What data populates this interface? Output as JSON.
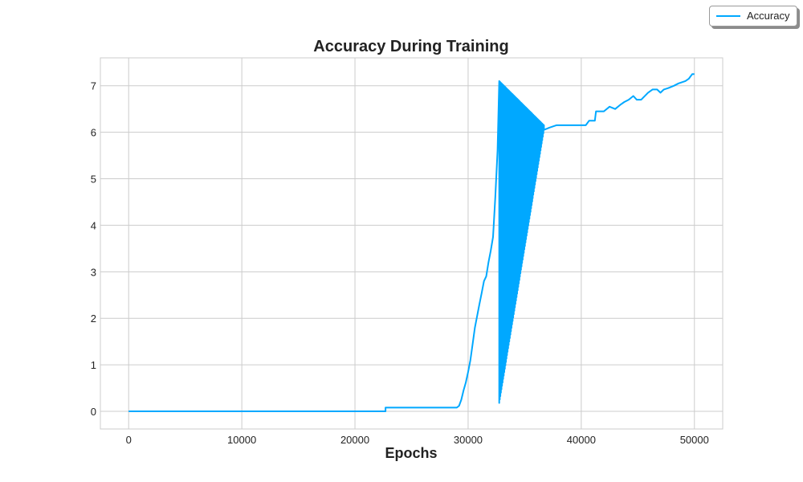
{
  "chart_data": {
    "type": "line",
    "title": "Accuracy During Training",
    "xlabel": "Epochs",
    "ylabel": "",
    "xlim": [
      -2500,
      52500
    ],
    "ylim": [
      -0.38,
      7.6
    ],
    "xticks": [
      0,
      10000,
      20000,
      30000,
      40000,
      50000
    ],
    "yticks": [
      0,
      1,
      2,
      3,
      4,
      5,
      6,
      7
    ],
    "grid": true,
    "legend_position": "top-right, outside plot",
    "series": [
      {
        "name": "Accuracy",
        "color": "#00a8ff",
        "x": [
          0,
          22700,
          22700,
          29000,
          29200,
          29400,
          29600,
          29800,
          30000,
          30200,
          30400,
          30600,
          30800,
          31000,
          31200,
          31400,
          31600,
          31800,
          32000,
          32200,
          32400,
          32600,
          32750
        ],
        "y": [
          0,
          0,
          0.08,
          0.08,
          0.12,
          0.25,
          0.45,
          0.62,
          0.85,
          1.1,
          1.45,
          1.8,
          2.05,
          2.3,
          2.55,
          2.8,
          2.9,
          3.2,
          3.45,
          3.75,
          4.6,
          5.6,
          7.1
        ],
        "oscillation": {
          "x_start": 32750,
          "x_end": 36700,
          "low_start": 0.18,
          "low_end": 6.05,
          "high_start": 7.1,
          "high_end": 6.15
        },
        "x_tail": [
          36700,
          37200,
          37800,
          38500,
          39500,
          40400,
          40700,
          41200,
          41300,
          42000,
          42500,
          43000,
          43500,
          43800,
          44200,
          44600,
          44900,
          45300,
          45900,
          46300,
          46700,
          47000,
          47300,
          47700,
          48200,
          48600,
          49200,
          49500,
          49800,
          50000
        ],
        "y_tail": [
          6.05,
          6.1,
          6.15,
          6.15,
          6.15,
          6.15,
          6.25,
          6.25,
          6.45,
          6.45,
          6.55,
          6.5,
          6.6,
          6.65,
          6.7,
          6.78,
          6.7,
          6.7,
          6.85,
          6.92,
          6.92,
          6.85,
          6.92,
          6.95,
          7.0,
          7.05,
          7.1,
          7.15,
          7.25,
          7.25
        ]
      }
    ]
  }
}
